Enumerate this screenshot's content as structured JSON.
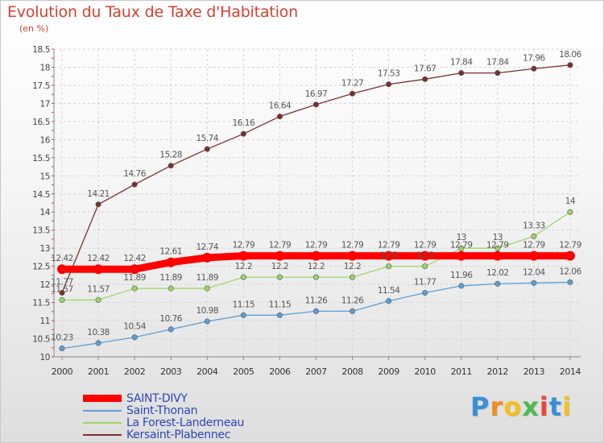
{
  "chart_data": {
    "type": "line",
    "title": "Evolution du Taux de Taxe d'Habitation",
    "subtitle": "(en %)",
    "xlabel": "",
    "ylabel": "",
    "categories": [
      "2000",
      "2001",
      "2002",
      "2003",
      "2004",
      "2005",
      "2006",
      "2007",
      "2008",
      "2009",
      "2010",
      "2011",
      "2012",
      "2013",
      "2014"
    ],
    "ylim": [
      10,
      18.5
    ],
    "yticks": [
      "10",
      "10.5",
      "11",
      "11.5",
      "12",
      "12.5",
      "13",
      "13.5",
      "14",
      "14.5",
      "15",
      "15.5",
      "16",
      "16.5",
      "17",
      "17.5",
      "18",
      "18.5"
    ],
    "grid": true,
    "legend_position": "bottom-left",
    "series": [
      {
        "name": "SAINT-DIVY",
        "color": "#ff0000",
        "values": [
          12.42,
          12.42,
          12.42,
          12.61,
          12.74,
          12.79,
          12.79,
          12.79,
          12.79,
          12.79,
          12.79,
          12.79,
          12.79,
          12.79,
          12.79
        ],
        "labels": [
          "12.42",
          "12.42",
          "12.42",
          "12.61",
          "12.74",
          "12.79",
          "12.79",
          "12.79",
          "12.79",
          "12.79",
          "12.79",
          "12.79",
          "12.79",
          "12.79",
          "12.79"
        ]
      },
      {
        "name": "Saint-Thonan",
        "color": "#5c9fd6",
        "values": [
          10.23,
          10.38,
          10.54,
          10.76,
          10.98,
          11.15,
          11.15,
          11.26,
          11.26,
          11.54,
          11.77,
          11.96,
          12.02,
          12.04,
          12.06
        ],
        "labels": [
          "10.23",
          "10.38",
          "10.54",
          "10.76",
          "10.98",
          "11.15",
          "11.15",
          "11.26",
          "11.26",
          "11.54",
          "11.77",
          "11.96",
          "12.02",
          "12.04",
          "12.06"
        ]
      },
      {
        "name": "La Forest-Landerneau",
        "color": "#9ed66a",
        "values": [
          11.57,
          11.57,
          11.89,
          11.89,
          11.89,
          12.2,
          12.2,
          12.2,
          12.2,
          12.5,
          12.5,
          13,
          13,
          13.33,
          14
        ],
        "labels": [
          "11.57",
          "11.57",
          "11.89",
          "11.89",
          "11.89",
          "12.2",
          "12.2",
          "12.2",
          "12.2",
          "12.5",
          "12.5",
          "13",
          "13",
          "13.33",
          "14"
        ]
      },
      {
        "name": "Kersaint-Plabennec",
        "color": "#7a2f2c",
        "values": [
          11.77,
          14.21,
          14.76,
          15.28,
          15.74,
          16.16,
          16.64,
          16.97,
          17.27,
          17.53,
          17.67,
          17.84,
          17.84,
          17.96,
          18.06
        ],
        "labels": [
          "11.77",
          "14.21",
          "14.76",
          "15.28",
          "15.74",
          "16.16",
          "16.64",
          "16.97",
          "17.27",
          "17.53",
          "17.67",
          "17.84",
          "17.84",
          "17.96",
          "18.06"
        ]
      }
    ]
  },
  "logo": {
    "letters": [
      "P",
      "r",
      "o",
      "x",
      "i",
      "t",
      "i"
    ],
    "colors": [
      "#3a8fd8",
      "#f28c1f",
      "#f2c11f",
      "#4fb84f",
      "#e8463c",
      "#3a8fd8",
      "#f2c11f"
    ]
  }
}
